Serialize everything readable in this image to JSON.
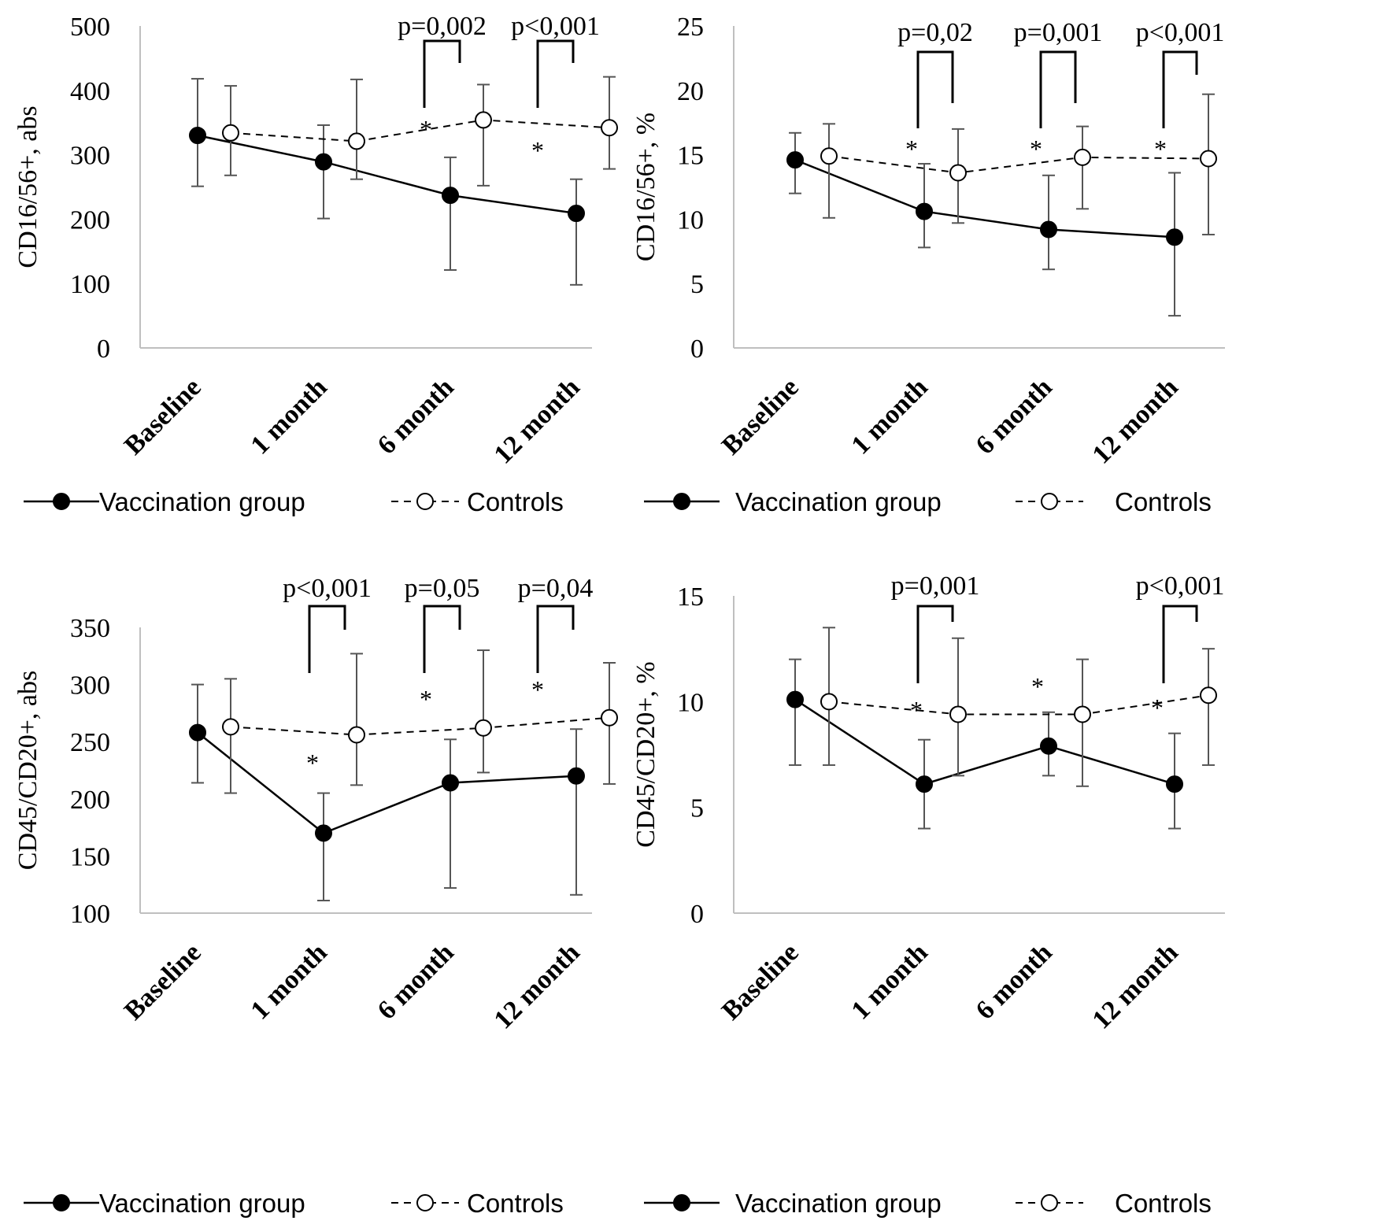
{
  "colors": {
    "ink": "#000000",
    "axis": "#bfbfbf",
    "errorbar": "#555555",
    "background": "#ffffff"
  },
  "chart_data": [
    {
      "type": "line",
      "ylabel": "CD16/56+, abs",
      "ylim": [
        0,
        500
      ],
      "yticks": [
        "0",
        "100",
        "200",
        "300",
        "400",
        "500"
      ],
      "categories": [
        "Baseline",
        "1 month",
        "6 month",
        "12 month"
      ],
      "series": [
        {
          "name": "Vaccination group",
          "style": "solid-filled",
          "values": [
            330,
            289,
            237,
            209
          ],
          "err_low": [
            251,
            201,
            121,
            98
          ],
          "err_high": [
            418,
            346,
            296,
            262
          ]
        },
        {
          "name": "Controls",
          "style": "dashed-open",
          "values": [
            334,
            321,
            354,
            342
          ],
          "err_low": [
            268,
            262,
            252,
            278
          ],
          "err_high": [
            407,
            417,
            409,
            421
          ]
        }
      ],
      "significance": [
        {
          "category": 2,
          "label": "p=0,002",
          "star": "*"
        },
        {
          "category": 3,
          "label": "p<0,001",
          "star": "*"
        }
      ]
    },
    {
      "type": "line",
      "ylabel": "CD16/56+, %",
      "ylim": [
        0,
        25
      ],
      "yticks": [
        "0",
        "5",
        "10",
        "15",
        "20",
        "25"
      ],
      "categories": [
        "Baseline",
        "1 month",
        "6 month",
        "12 month"
      ],
      "series": [
        {
          "name": "Vaccination group",
          "style": "solid-filled",
          "values": [
            14.6,
            10.6,
            9.2,
            8.6
          ],
          "err_low": [
            12.0,
            7.8,
            6.1,
            2.5
          ],
          "err_high": [
            16.7,
            14.3,
            13.4,
            13.6
          ]
        },
        {
          "name": "Controls",
          "style": "dashed-open",
          "values": [
            14.9,
            13.6,
            14.8,
            14.7
          ],
          "err_low": [
            10.1,
            9.7,
            10.8,
            8.8
          ],
          "err_high": [
            17.4,
            17.0,
            17.2,
            19.7
          ]
        }
      ],
      "significance": [
        {
          "category": 1,
          "label": "p=0,02",
          "star": "*"
        },
        {
          "category": 2,
          "label": "p=0,001",
          "star": "*"
        },
        {
          "category": 3,
          "label": "p<0,001",
          "star": "*"
        }
      ]
    },
    {
      "type": "line",
      "ylabel": "CD45/CD20+, abs",
      "ylim": [
        100,
        350
      ],
      "yticks": [
        "100",
        "150",
        "200",
        "250",
        "300",
        "350"
      ],
      "categories": [
        "Baseline",
        "1 month",
        "6 month",
        "12 month"
      ],
      "series": [
        {
          "name": "Vaccination group",
          "style": "solid-filled",
          "values": [
            258,
            170,
            214,
            220
          ],
          "err_low": [
            214,
            111,
            122,
            116
          ],
          "err_high": [
            300,
            205,
            252,
            261
          ]
        },
        {
          "name": "Controls",
          "style": "dashed-open",
          "values": [
            263,
            256,
            262,
            271
          ],
          "err_low": [
            205,
            212,
            223,
            213
          ],
          "err_high": [
            305,
            327,
            330,
            319
          ]
        }
      ],
      "significance": [
        {
          "category": 1,
          "label": "p<0,001",
          "star": "*"
        },
        {
          "category": 2,
          "label": "p=0,05",
          "star": "*"
        },
        {
          "category": 3,
          "label": "p=0,04",
          "star": "*"
        }
      ]
    },
    {
      "type": "line",
      "ylabel": "CD45/CD20+, %",
      "ylim": [
        0,
        15
      ],
      "yticks": [
        "0",
        "5",
        "10",
        "15"
      ],
      "categories": [
        "Baseline",
        "1 month",
        "6 month",
        "12 month"
      ],
      "series": [
        {
          "name": "Vaccination group",
          "style": "solid-filled",
          "values": [
            10.1,
            6.1,
            7.9,
            6.1
          ],
          "err_low": [
            7.0,
            4.0,
            6.5,
            4.0
          ],
          "err_high": [
            12.0,
            8.2,
            9.5,
            8.5
          ]
        },
        {
          "name": "Controls",
          "style": "dashed-open",
          "values": [
            10.0,
            9.4,
            9.4,
            10.3
          ],
          "err_low": [
            7.0,
            6.5,
            6.0,
            7.0
          ],
          "err_high": [
            13.5,
            13.0,
            12.0,
            12.5
          ]
        }
      ],
      "significance": [
        {
          "category": 1,
          "label": "p=0,001",
          "star": "*"
        },
        {
          "category": 2,
          "label": "",
          "star": "*"
        },
        {
          "category": 3,
          "label": "p<0,001",
          "star": "*"
        }
      ]
    }
  ]
}
